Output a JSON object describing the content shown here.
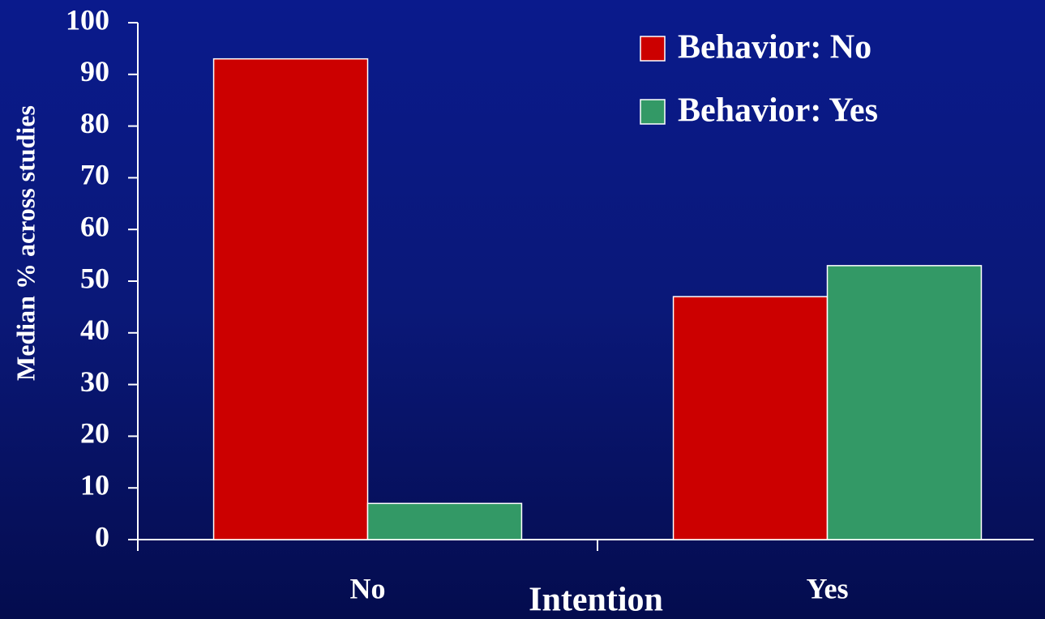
{
  "chart_data": {
    "type": "bar",
    "categories": [
      "No",
      "Yes"
    ],
    "x_label": "Intention",
    "y_label": "Median % across studies",
    "series": [
      {
        "name": "Behavior: No",
        "color": "#cc0000",
        "values": [
          93,
          47
        ]
      },
      {
        "name": "Behavior: Yes",
        "color": "#339966",
        "values": [
          7,
          53
        ]
      }
    ],
    "ylim": [
      0,
      100
    ],
    "yticks": [
      0,
      10,
      20,
      30,
      40,
      50,
      60,
      70,
      80,
      90,
      100
    ],
    "grid": false,
    "legend": "upper right"
  }
}
